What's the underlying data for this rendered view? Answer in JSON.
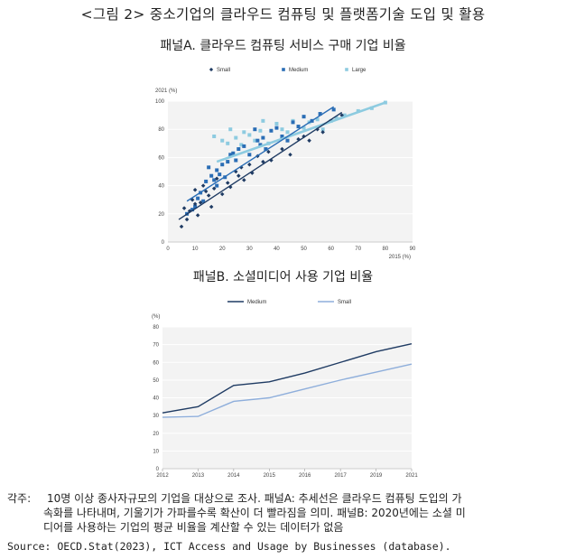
{
  "figure_title": "<그림 2> 중소기업의 클라우드 컴퓨팅 및 플랫폼기술 도입 및 활용",
  "note_label": "각주:",
  "note_lines": [
    "10명 이상 종사자규모의 기업을 대상으로 조사. 패널A: 추세선은 클라우드 컴퓨팅 도입의 가",
    "속화를 나타내며, 기울기가 가파를수록 확산이 더 빨라짐을 의미. 패널B: 2020년에는 소셜 미",
    "디어를 사용하는 기업의 평균 비율을 계산할 수 있는 데이터가 없음"
  ],
  "source": "Source: OECD.Stat(2023), ICT Access and Usage by Businesses (database).",
  "colors": {
    "small": "#1f3b63",
    "medium": "#2a6db5",
    "large": "#8dcbe0",
    "lineMedium": "#1f3b63",
    "lineSmall": "#8eaedb"
  },
  "chart_data": [
    {
      "type": "scatter",
      "title": "패널A. 클라우드 컴퓨팅 서비스 구매 기업 비율",
      "xlabel": "2015 (%)",
      "ylabel": "2021 (%)",
      "xlim": [
        0,
        90
      ],
      "ylim": [
        0,
        100
      ],
      "xticks": [
        0,
        10,
        20,
        30,
        40,
        50,
        60,
        70,
        80,
        90
      ],
      "yticks": [
        0,
        20,
        40,
        60,
        80,
        100
      ],
      "grid": true,
      "legend_position": "top",
      "series": [
        {
          "name": "Small",
          "marker": "diamond",
          "points": [
            [
              5,
              11
            ],
            [
              6,
              24
            ],
            [
              7,
              16
            ],
            [
              8,
              22
            ],
            [
              9,
              30
            ],
            [
              10,
              27
            ],
            [
              10,
              37
            ],
            [
              11,
              19
            ],
            [
              12,
              28
            ],
            [
              13,
              40
            ],
            [
              14,
              36
            ],
            [
              15,
              33
            ],
            [
              16,
              25
            ],
            [
              17,
              38
            ],
            [
              18,
              45
            ],
            [
              20,
              34
            ],
            [
              22,
              42
            ],
            [
              23,
              39
            ],
            [
              25,
              50
            ],
            [
              26,
              47
            ],
            [
              27,
              53
            ],
            [
              28,
              44
            ],
            [
              30,
              55
            ],
            [
              31,
              49
            ],
            [
              33,
              61
            ],
            [
              35,
              57
            ],
            [
              37,
              64
            ],
            [
              38,
              58
            ],
            [
              42,
              66
            ],
            [
              45,
              62
            ],
            [
              48,
              73
            ],
            [
              50,
              75
            ],
            [
              52,
              72
            ],
            [
              55,
              80
            ],
            [
              57,
              78
            ],
            [
              60,
              86
            ],
            [
              64,
              90
            ]
          ],
          "trend": [
            [
              4,
              16
            ],
            [
              64,
              92
            ]
          ]
        },
        {
          "name": "Medium",
          "marker": "square",
          "points": [
            [
              7,
              20
            ],
            [
              9,
              23
            ],
            [
              10,
              25
            ],
            [
              11,
              31
            ],
            [
              12,
              35
            ],
            [
              13,
              29
            ],
            [
              14,
              43
            ],
            [
              15,
              53
            ],
            [
              16,
              47
            ],
            [
              17,
              44
            ],
            [
              18,
              40
            ],
            [
              18,
              51
            ],
            [
              19,
              48
            ],
            [
              20,
              55
            ],
            [
              21,
              46
            ],
            [
              22,
              57
            ],
            [
              23,
              62
            ],
            [
              24,
              63
            ],
            [
              25,
              58
            ],
            [
              26,
              66
            ],
            [
              28,
              68
            ],
            [
              30,
              62
            ],
            [
              32,
              80
            ],
            [
              33,
              72
            ],
            [
              34,
              69
            ],
            [
              35,
              74
            ],
            [
              36,
              66
            ],
            [
              38,
              79
            ],
            [
              40,
              81
            ],
            [
              42,
              75
            ],
            [
              44,
              72
            ],
            [
              46,
              85
            ],
            [
              48,
              82
            ],
            [
              50,
              89
            ],
            [
              53,
              86
            ],
            [
              56,
              91
            ],
            [
              61,
              94
            ]
          ],
          "trend": [
            [
              7,
              29
            ],
            [
              61,
              96
            ]
          ]
        },
        {
          "name": "Large",
          "marker": "square",
          "points": [
            [
              17,
              75
            ],
            [
              20,
              72
            ],
            [
              22,
              70
            ],
            [
              23,
              80
            ],
            [
              25,
              74
            ],
            [
              27,
              69
            ],
            [
              28,
              78
            ],
            [
              30,
              76
            ],
            [
              32,
              72
            ],
            [
              34,
              79
            ],
            [
              35,
              86
            ],
            [
              37,
              70
            ],
            [
              40,
              84
            ],
            [
              42,
              80
            ],
            [
              44,
              78
            ],
            [
              46,
              86
            ],
            [
              50,
              81
            ],
            [
              52,
              85
            ],
            [
              55,
              87
            ],
            [
              57,
              80
            ],
            [
              60,
              86
            ],
            [
              62,
              88
            ],
            [
              65,
              90
            ],
            [
              70,
              93
            ],
            [
              75,
              95
            ],
            [
              80,
              99
            ]
          ],
          "trend": [
            [
              18,
              57
            ],
            [
              80,
              99
            ]
          ]
        }
      ]
    },
    {
      "type": "line",
      "title": "패널B. 소셜미디어 사용 기업 비율",
      "ylabel": "(%)",
      "ylim": [
        0,
        80
      ],
      "yticks": [
        0,
        10,
        20,
        30,
        40,
        50,
        60,
        70,
        80
      ],
      "categories": [
        "2012",
        "2013",
        "2014",
        "2015",
        "2016",
        "2017",
        "2019",
        "2021"
      ],
      "grid": true,
      "legend_position": "top",
      "series": [
        {
          "name": "Medium",
          "values": [
            31.5,
            35,
            47,
            49,
            54,
            60,
            66,
            70.5
          ]
        },
        {
          "name": "Small",
          "values": [
            29,
            29.5,
            38,
            40,
            45,
            50,
            54.5,
            59
          ]
        }
      ]
    }
  ]
}
